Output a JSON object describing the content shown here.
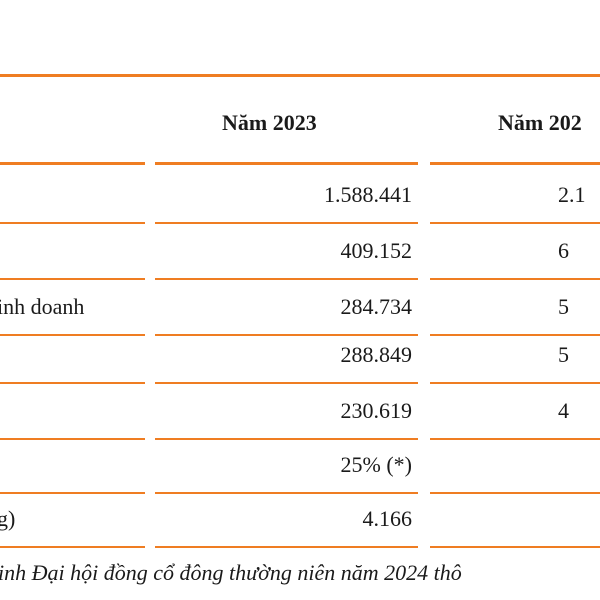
{
  "header": {
    "year_2023": "Năm 2023",
    "year_2024": "Năm 202"
  },
  "rows": [
    {
      "label": "",
      "val2023": "1.588.441",
      "val2024": "2.1"
    },
    {
      "label": "",
      "val2023": "409.152",
      "val2024": "6"
    },
    {
      "label": "inh doanh",
      "val2023": "284.734",
      "val2024": "5"
    },
    {
      "label": "",
      "val2023": "288.849",
      "val2024": "5"
    },
    {
      "label": "",
      "val2023": "230.619",
      "val2024": "4"
    },
    {
      "label": "",
      "val2023": "25% (*)",
      "val2024": ""
    },
    {
      "label": "g)",
      "val2023": "4.166",
      "val2024": ""
    }
  ],
  "footnote": "inh Đại hội đồng cổ đông thường niên năm 2024 thô",
  "colors": {
    "accent": "#ef7d22"
  }
}
